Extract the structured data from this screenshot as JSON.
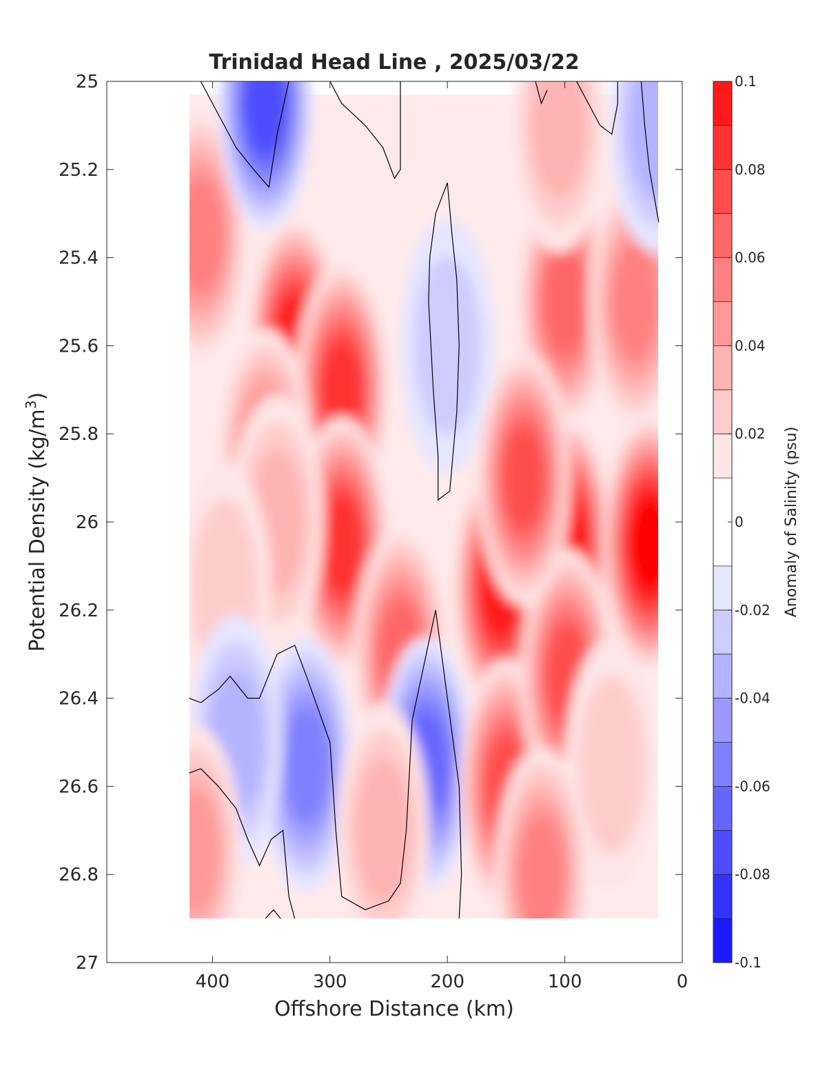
{
  "chart_data": {
    "type": "heatmap",
    "title": "Trinidad Head Line , 2025/03/22",
    "xlabel": "Offshore Distance (km)",
    "ylabel_main": "Potential Density (kg/m",
    "ylabel_sup": "3",
    "ylabel_close": ")",
    "xlim": [
      490,
      0
    ],
    "ylim": [
      25,
      27
    ],
    "y_reversed": true,
    "x_reversed": true,
    "xticks": [
      400,
      300,
      200,
      100,
      0
    ],
    "xtick_labels": [
      "400",
      "300",
      "200",
      "100",
      "0"
    ],
    "yticks": [
      25,
      25.2,
      25.4,
      25.6,
      25.8,
      26,
      26.2,
      26.4,
      26.6,
      26.8,
      27
    ],
    "ytick_labels": [
      "25",
      "25.2",
      "25.4",
      "25.6",
      "25.8",
      "26",
      "26.2",
      "26.4",
      "26.6",
      "26.8",
      "27"
    ],
    "data_extent": {
      "x": [
        420,
        20
      ],
      "y": [
        25.03,
        26.9
      ]
    },
    "colorbar": {
      "label": "Anomaly of Salinity (psu)",
      "range": [
        -0.1,
        0.1
      ],
      "tick_values": [
        0.1,
        0.08,
        0.06,
        0.04,
        0.02,
        0,
        -0.02,
        -0.04,
        -0.06,
        -0.08,
        -0.1
      ],
      "tick_labels": [
        "0.1",
        "0.08",
        "0.06",
        "0.04",
        "0.02",
        "0",
        "-0.02",
        "-0.04",
        "-0.06",
        "-0.08",
        "-0.1"
      ],
      "levels": [
        -0.1,
        -0.09,
        -0.08,
        -0.07,
        -0.06,
        -0.05,
        -0.04,
        -0.03,
        -0.02,
        -0.01,
        0.01,
        0.02,
        0.03,
        0.04,
        0.05,
        0.06,
        0.07,
        0.08,
        0.09,
        0.1
      ],
      "colors": [
        "#0000ff",
        "#1a1aff",
        "#3333ff",
        "#4d4dff",
        "#6666ff",
        "#8080ff",
        "#9999ff",
        "#b3b3ff",
        "#ccccff",
        "#e6e6ff",
        "#ffffff",
        "#ffe6e6",
        "#ffcccc",
        "#ffb3b3",
        "#ff9999",
        "#ff8080",
        "#ff6666",
        "#ff4d4d",
        "#ff3333",
        "#ff1a1a",
        "#ff0000"
      ]
    },
    "field_features": [
      {
        "x": 330,
        "y": 25.6,
        "value": 0.09
      },
      {
        "x": 290,
        "y": 25.7,
        "value": 0.08
      },
      {
        "x": 290,
        "y": 26.05,
        "value": 0.08
      },
      {
        "x": 410,
        "y": 25.35,
        "value": 0.05
      },
      {
        "x": 355,
        "y": 25.85,
        "value": 0.05
      },
      {
        "x": 240,
        "y": 26.3,
        "value": 0.06
      },
      {
        "x": 345,
        "y": 26.0,
        "value": 0.03
      },
      {
        "x": 390,
        "y": 26.15,
        "value": 0.02
      },
      {
        "x": 355,
        "y": 25.05,
        "value": -0.07
      },
      {
        "x": 200,
        "y": 25.6,
        "value": -0.02
      },
      {
        "x": 320,
        "y": 26.55,
        "value": -0.05
      },
      {
        "x": 380,
        "y": 26.5,
        "value": -0.03
      },
      {
        "x": 218,
        "y": 26.55,
        "value": -0.06
      },
      {
        "x": 415,
        "y": 26.75,
        "value": 0.04
      },
      {
        "x": 255,
        "y": 26.7,
        "value": 0.03
      },
      {
        "x": 155,
        "y": 26.15,
        "value": 0.09
      },
      {
        "x": 150,
        "y": 26.6,
        "value": 0.07
      },
      {
        "x": 100,
        "y": 26.05,
        "value": 0.1
      },
      {
        "x": 98,
        "y": 26.35,
        "value": 0.07
      },
      {
        "x": 100,
        "y": 25.5,
        "value": 0.06
      },
      {
        "x": 105,
        "y": 25.1,
        "value": 0.03
      },
      {
        "x": 135,
        "y": 25.9,
        "value": 0.07
      },
      {
        "x": 28,
        "y": 26.05,
        "value": 0.1
      },
      {
        "x": 40,
        "y": 25.5,
        "value": 0.05
      },
      {
        "x": 60,
        "y": 26.55,
        "value": 0.02
      },
      {
        "x": 120,
        "y": 26.8,
        "value": 0.05
      },
      {
        "x": 22,
        "y": 25.1,
        "value": -0.03
      }
    ],
    "zero_contours": [
      [
        [
          410,
          25.0
        ],
        [
          390,
          25.1
        ],
        [
          380,
          25.15
        ],
        [
          365,
          25.2
        ],
        [
          352,
          25.24
        ],
        [
          345,
          25.12
        ],
        [
          335,
          25.0
        ]
      ],
      [
        [
          300,
          25.0
        ],
        [
          290,
          25.05
        ],
        [
          270,
          25.1
        ],
        [
          255,
          25.15
        ],
        [
          245,
          25.22
        ],
        [
          240,
          25.2
        ],
        [
          240,
          25.0
        ]
      ],
      [
        [
          200,
          25.23
        ],
        [
          210,
          25.3
        ],
        [
          215,
          25.4
        ],
        [
          216,
          25.5
        ],
        [
          212,
          25.7
        ],
        [
          208,
          25.85
        ],
        [
          208,
          25.95
        ],
        [
          198,
          25.93
        ],
        [
          192,
          25.75
        ],
        [
          190,
          25.6
        ],
        [
          192,
          25.45
        ],
        [
          196,
          25.35
        ],
        [
          200,
          25.23
        ]
      ],
      [
        [
          90,
          25.0
        ],
        [
          80,
          25.05
        ],
        [
          70,
          25.1
        ],
        [
          60,
          25.12
        ],
        [
          55,
          25.05
        ],
        [
          55,
          25.0
        ]
      ],
      [
        [
          125,
          25.0
        ],
        [
          120,
          25.05
        ],
        [
          115,
          25.02
        ]
      ],
      [
        [
          35,
          25.0
        ],
        [
          32,
          25.1
        ],
        [
          28,
          25.2
        ],
        [
          20,
          25.32
        ]
      ],
      [
        [
          420,
          26.4
        ],
        [
          410,
          26.41
        ],
        [
          395,
          26.38
        ],
        [
          385,
          26.35
        ],
        [
          370,
          26.4
        ],
        [
          360,
          26.4
        ],
        [
          345,
          26.3
        ],
        [
          330,
          26.28
        ],
        [
          320,
          26.35
        ],
        [
          300,
          26.5
        ],
        [
          295,
          26.7
        ],
        [
          290,
          26.85
        ],
        [
          270,
          26.88
        ],
        [
          250,
          26.86
        ],
        [
          240,
          26.82
        ],
        [
          235,
          26.7
        ],
        [
          232,
          26.55
        ],
        [
          230,
          26.45
        ],
        [
          218,
          26.3
        ],
        [
          210,
          26.2
        ],
        [
          205,
          26.3
        ],
        [
          195,
          26.5
        ],
        [
          190,
          26.6
        ],
        [
          188,
          26.8
        ],
        [
          190,
          26.9
        ]
      ],
      [
        [
          420,
          26.57
        ],
        [
          410,
          26.56
        ],
        [
          395,
          26.6
        ],
        [
          380,
          26.65
        ],
        [
          370,
          26.72
        ],
        [
          360,
          26.78
        ],
        [
          350,
          26.72
        ],
        [
          340,
          26.7
        ],
        [
          335,
          26.85
        ],
        [
          330,
          26.9
        ]
      ],
      [
        [
          355,
          26.9
        ],
        [
          348,
          26.88
        ],
        [
          342,
          26.9
        ]
      ]
    ]
  }
}
